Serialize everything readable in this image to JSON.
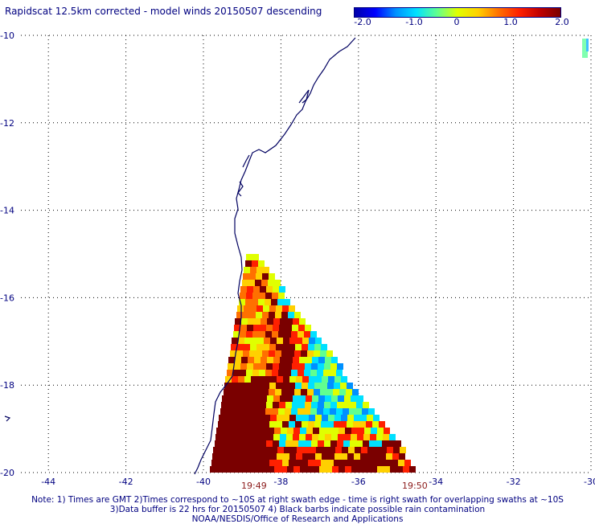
{
  "title": "Rapidscat 12.5km corrected - model winds 20150507 descending",
  "colorbar": {
    "tick_labels": [
      "-2.0",
      "-1.0",
      "0",
      "1.0",
      "2.0"
    ],
    "colors": [
      "#0000aa",
      "#0000ff",
      "#0090ff",
      "#00e0ff",
      "#60ff90",
      "#e0ff00",
      "#ffd000",
      "#ff7000",
      "#ff2000",
      "#c00000",
      "#7a0000"
    ]
  },
  "map": {
    "lat_labels": [
      "-10",
      "-12",
      "-14",
      "-16",
      "-18",
      "-20"
    ],
    "lon_labels": [
      "-44",
      "-42",
      "-40",
      "-38",
      "-36",
      "-34",
      "-32",
      "-30"
    ],
    "lat_range": [
      -20,
      -10
    ],
    "lon_range": [
      -45,
      -30
    ],
    "grid": "dotted",
    "coastline_color": "#000060",
    "time_labels": [
      "19:49",
      "19:50"
    ]
  },
  "notes": [
    "Note: 1) Times are GMT 2)Times correspond to ~10S at right swath edge - time is right swath for overlapping swaths at ~10S",
    "3)Data buffer is 22 hrs for 20150507 4) Black barbs indicate possible rain contamination",
    "NOAA/NESDIS/Office of Research and Applications"
  ]
}
